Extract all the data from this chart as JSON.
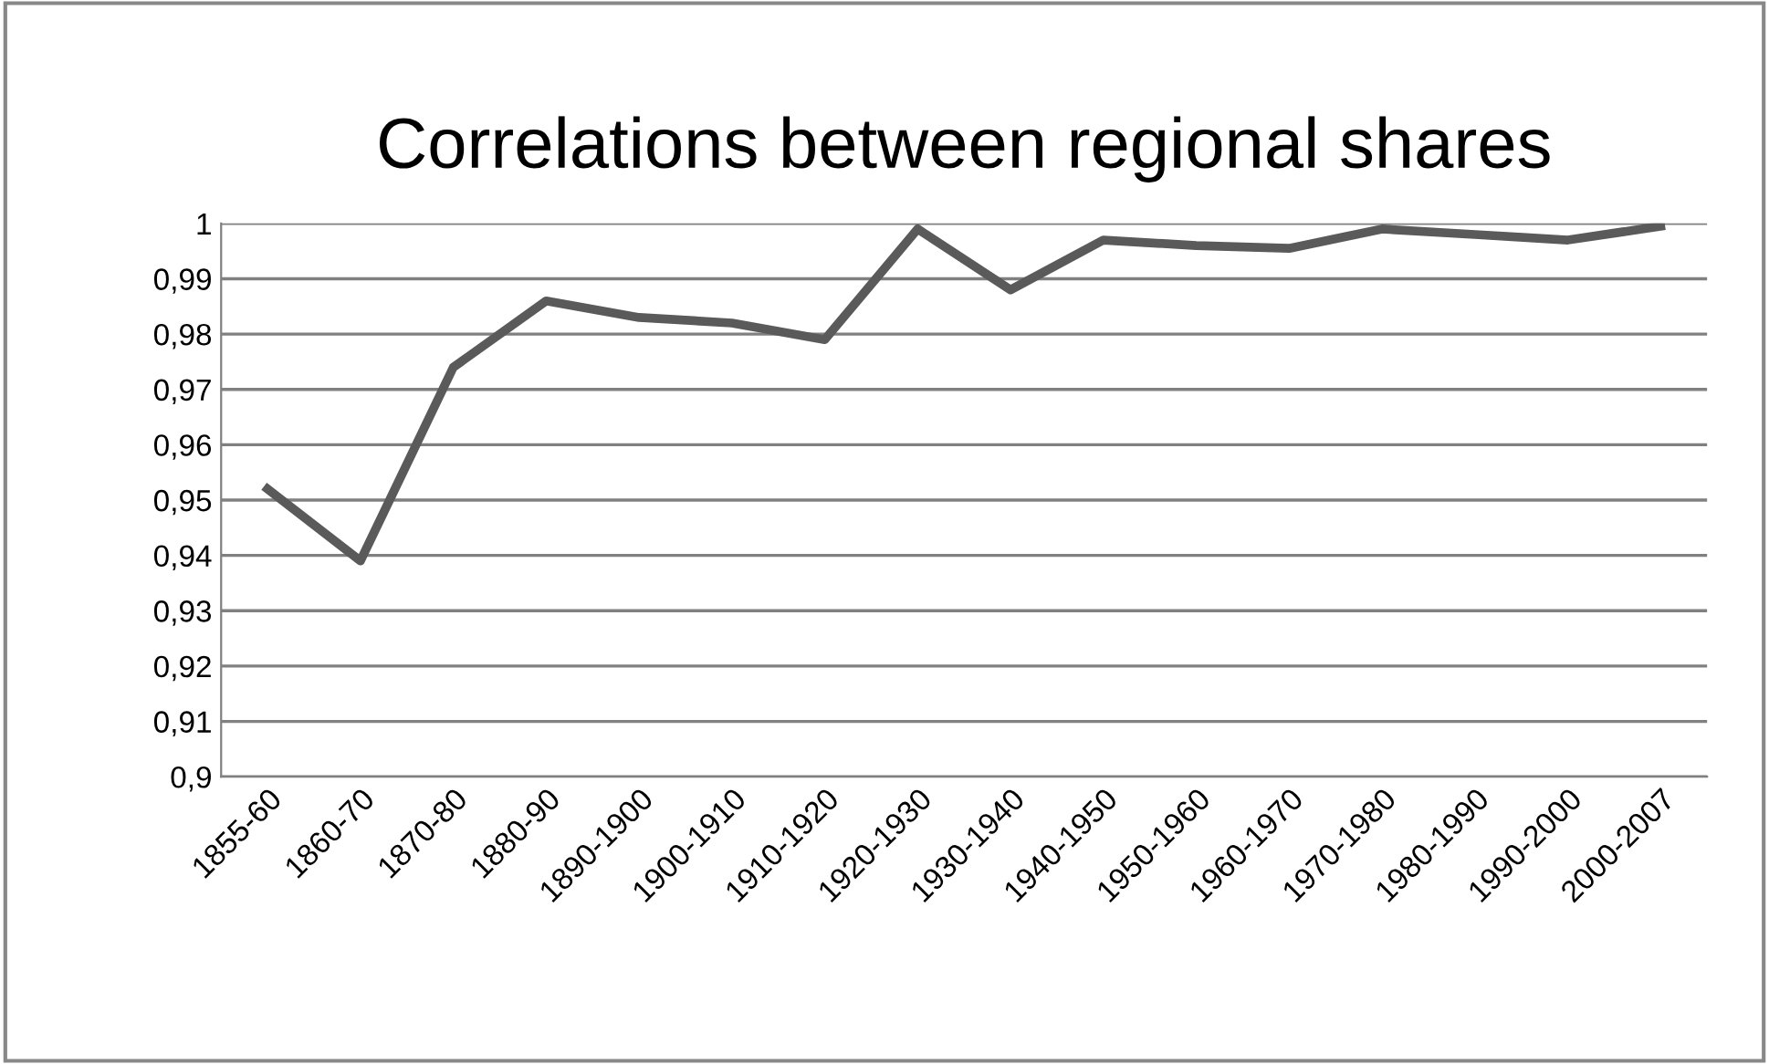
{
  "chart_data": {
    "type": "line",
    "title": "Correlations between regional shares",
    "categories": [
      "1855-60",
      "1860-70",
      "1870-80",
      "1880-90",
      "1890-1900",
      "1900-1910",
      "1910-1920",
      "1920-1930",
      "1930-1940",
      "1940-1950",
      "1950-1960",
      "1960-1970",
      "1970-1980",
      "1980-1990",
      "1990-2000",
      "2000-2007"
    ],
    "series": [
      {
        "color": "#5a5a5a",
        "values": [
          0.952,
          0.939,
          0.974,
          0.986,
          0.983,
          0.982,
          0.979,
          0.999,
          0.988,
          0.997,
          0.996,
          0.9955,
          0.999,
          0.998,
          0.997,
          0.9995
        ]
      }
    ],
    "ylim": [
      0.9,
      1
    ],
    "yticks": [
      {
        "value": 0.9,
        "label": "0,9"
      },
      {
        "value": 0.91,
        "label": "0,91"
      },
      {
        "value": 0.92,
        "label": "0,92"
      },
      {
        "value": 0.93,
        "label": "0,93"
      },
      {
        "value": 0.94,
        "label": "0,94"
      },
      {
        "value": 0.95,
        "label": "0,95"
      },
      {
        "value": 0.96,
        "label": "0,96"
      },
      {
        "value": 0.97,
        "label": "0,97"
      },
      {
        "value": 0.98,
        "label": "0,98"
      },
      {
        "value": 0.99,
        "label": "0,99"
      },
      {
        "value": 1,
        "label": "1"
      }
    ],
    "grid": "y",
    "legend": false,
    "marker": "none",
    "line_style": "solid"
  }
}
